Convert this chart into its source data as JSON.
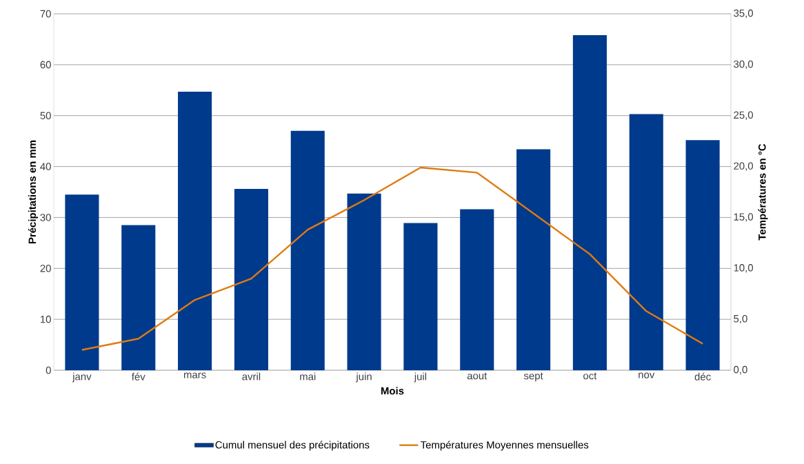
{
  "chart_data": {
    "type": "bar",
    "xlabel": "Mois",
    "ylabel": "Précipitations en mm",
    "y2label": "Températures en °C",
    "categories": [
      "janv",
      "fév",
      "mars",
      "avril",
      "mai",
      "juin",
      "juil",
      "aout",
      "sept",
      "oct",
      "nov",
      "déc"
    ],
    "series": [
      {
        "name": "Cumul mensuel des précipitations",
        "color": "#003a8c",
        "values": [
          34.5,
          28.5,
          54.7,
          35.6,
          47.0,
          34.7,
          28.9,
          31.6,
          43.4,
          65.8,
          50.3,
          45.2
        ]
      },
      {
        "name": "Températures Moyennes mensuelles",
        "type": "line",
        "axis": "y2",
        "color": "#e07b10",
        "values": [
          2.0,
          3.1,
          6.9,
          9.0,
          13.8,
          16.7,
          19.9,
          19.4,
          15.4,
          11.4,
          5.8,
          2.6
        ]
      }
    ],
    "ylim": [
      0,
      70
    ],
    "yticks": [
      0,
      10,
      20,
      30,
      40,
      50,
      60,
      70
    ],
    "y2lim": [
      0,
      35
    ],
    "y2ticks": [
      {
        "value": 0,
        "label": "0,0"
      },
      {
        "value": 5,
        "label": "5,0"
      },
      {
        "value": 10,
        "label": "10,0"
      },
      {
        "value": 15,
        "label": "15,0"
      },
      {
        "value": 20,
        "label": "20,0"
      },
      {
        "value": 25,
        "label": "25,0"
      },
      {
        "value": 30,
        "label": "30,0"
      },
      {
        "value": 35,
        "label": "35,0"
      }
    ],
    "grid": "y",
    "legend": "bottom"
  }
}
